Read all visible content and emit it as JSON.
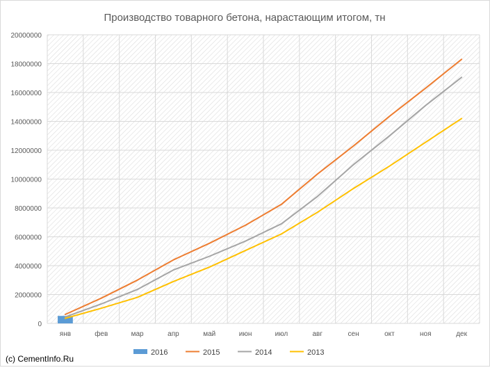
{
  "chart_data": {
    "type": "line",
    "title": "Производство товарного бетона, нарастающим итогом, тн",
    "xlabel": "",
    "ylabel": "",
    "categories": [
      "янв",
      "фев",
      "мар",
      "апр",
      "май",
      "июн",
      "июл",
      "авг",
      "сен",
      "окт",
      "ноя",
      "дек"
    ],
    "ylim": [
      0,
      20000000
    ],
    "yticks": [
      "0",
      "2000000",
      "4000000",
      "6000000",
      "8000000",
      "10000000",
      "12000000",
      "14000000",
      "16000000",
      "18000000",
      "20000000"
    ],
    "grid": true,
    "legend_position": "bottom",
    "series": [
      {
        "name": "2016",
        "kind": "bar",
        "color": "#5b9bd5",
        "values": [
          520000,
          null,
          null,
          null,
          null,
          null,
          null,
          null,
          null,
          null,
          null,
          null
        ]
      },
      {
        "name": "2015",
        "kind": "line",
        "color": "#ed7d31",
        "values": [
          620000,
          1750000,
          3000000,
          4400000,
          5550000,
          6800000,
          8250000,
          10350000,
          12300000,
          14350000,
          16300000,
          18300000
        ]
      },
      {
        "name": "2014",
        "kind": "line",
        "color": "#a5a5a5",
        "values": [
          450000,
          1350000,
          2350000,
          3700000,
          4650000,
          5700000,
          6900000,
          8800000,
          11000000,
          13000000,
          15100000,
          17050000
        ]
      },
      {
        "name": "2013",
        "kind": "line",
        "color": "#ffc000",
        "values": [
          350000,
          1050000,
          1800000,
          2900000,
          3900000,
          5050000,
          6200000,
          7700000,
          9350000,
          10900000,
          12550000,
          14200000
        ]
      }
    ]
  },
  "credit": "(c) CementInfo.Ru"
}
